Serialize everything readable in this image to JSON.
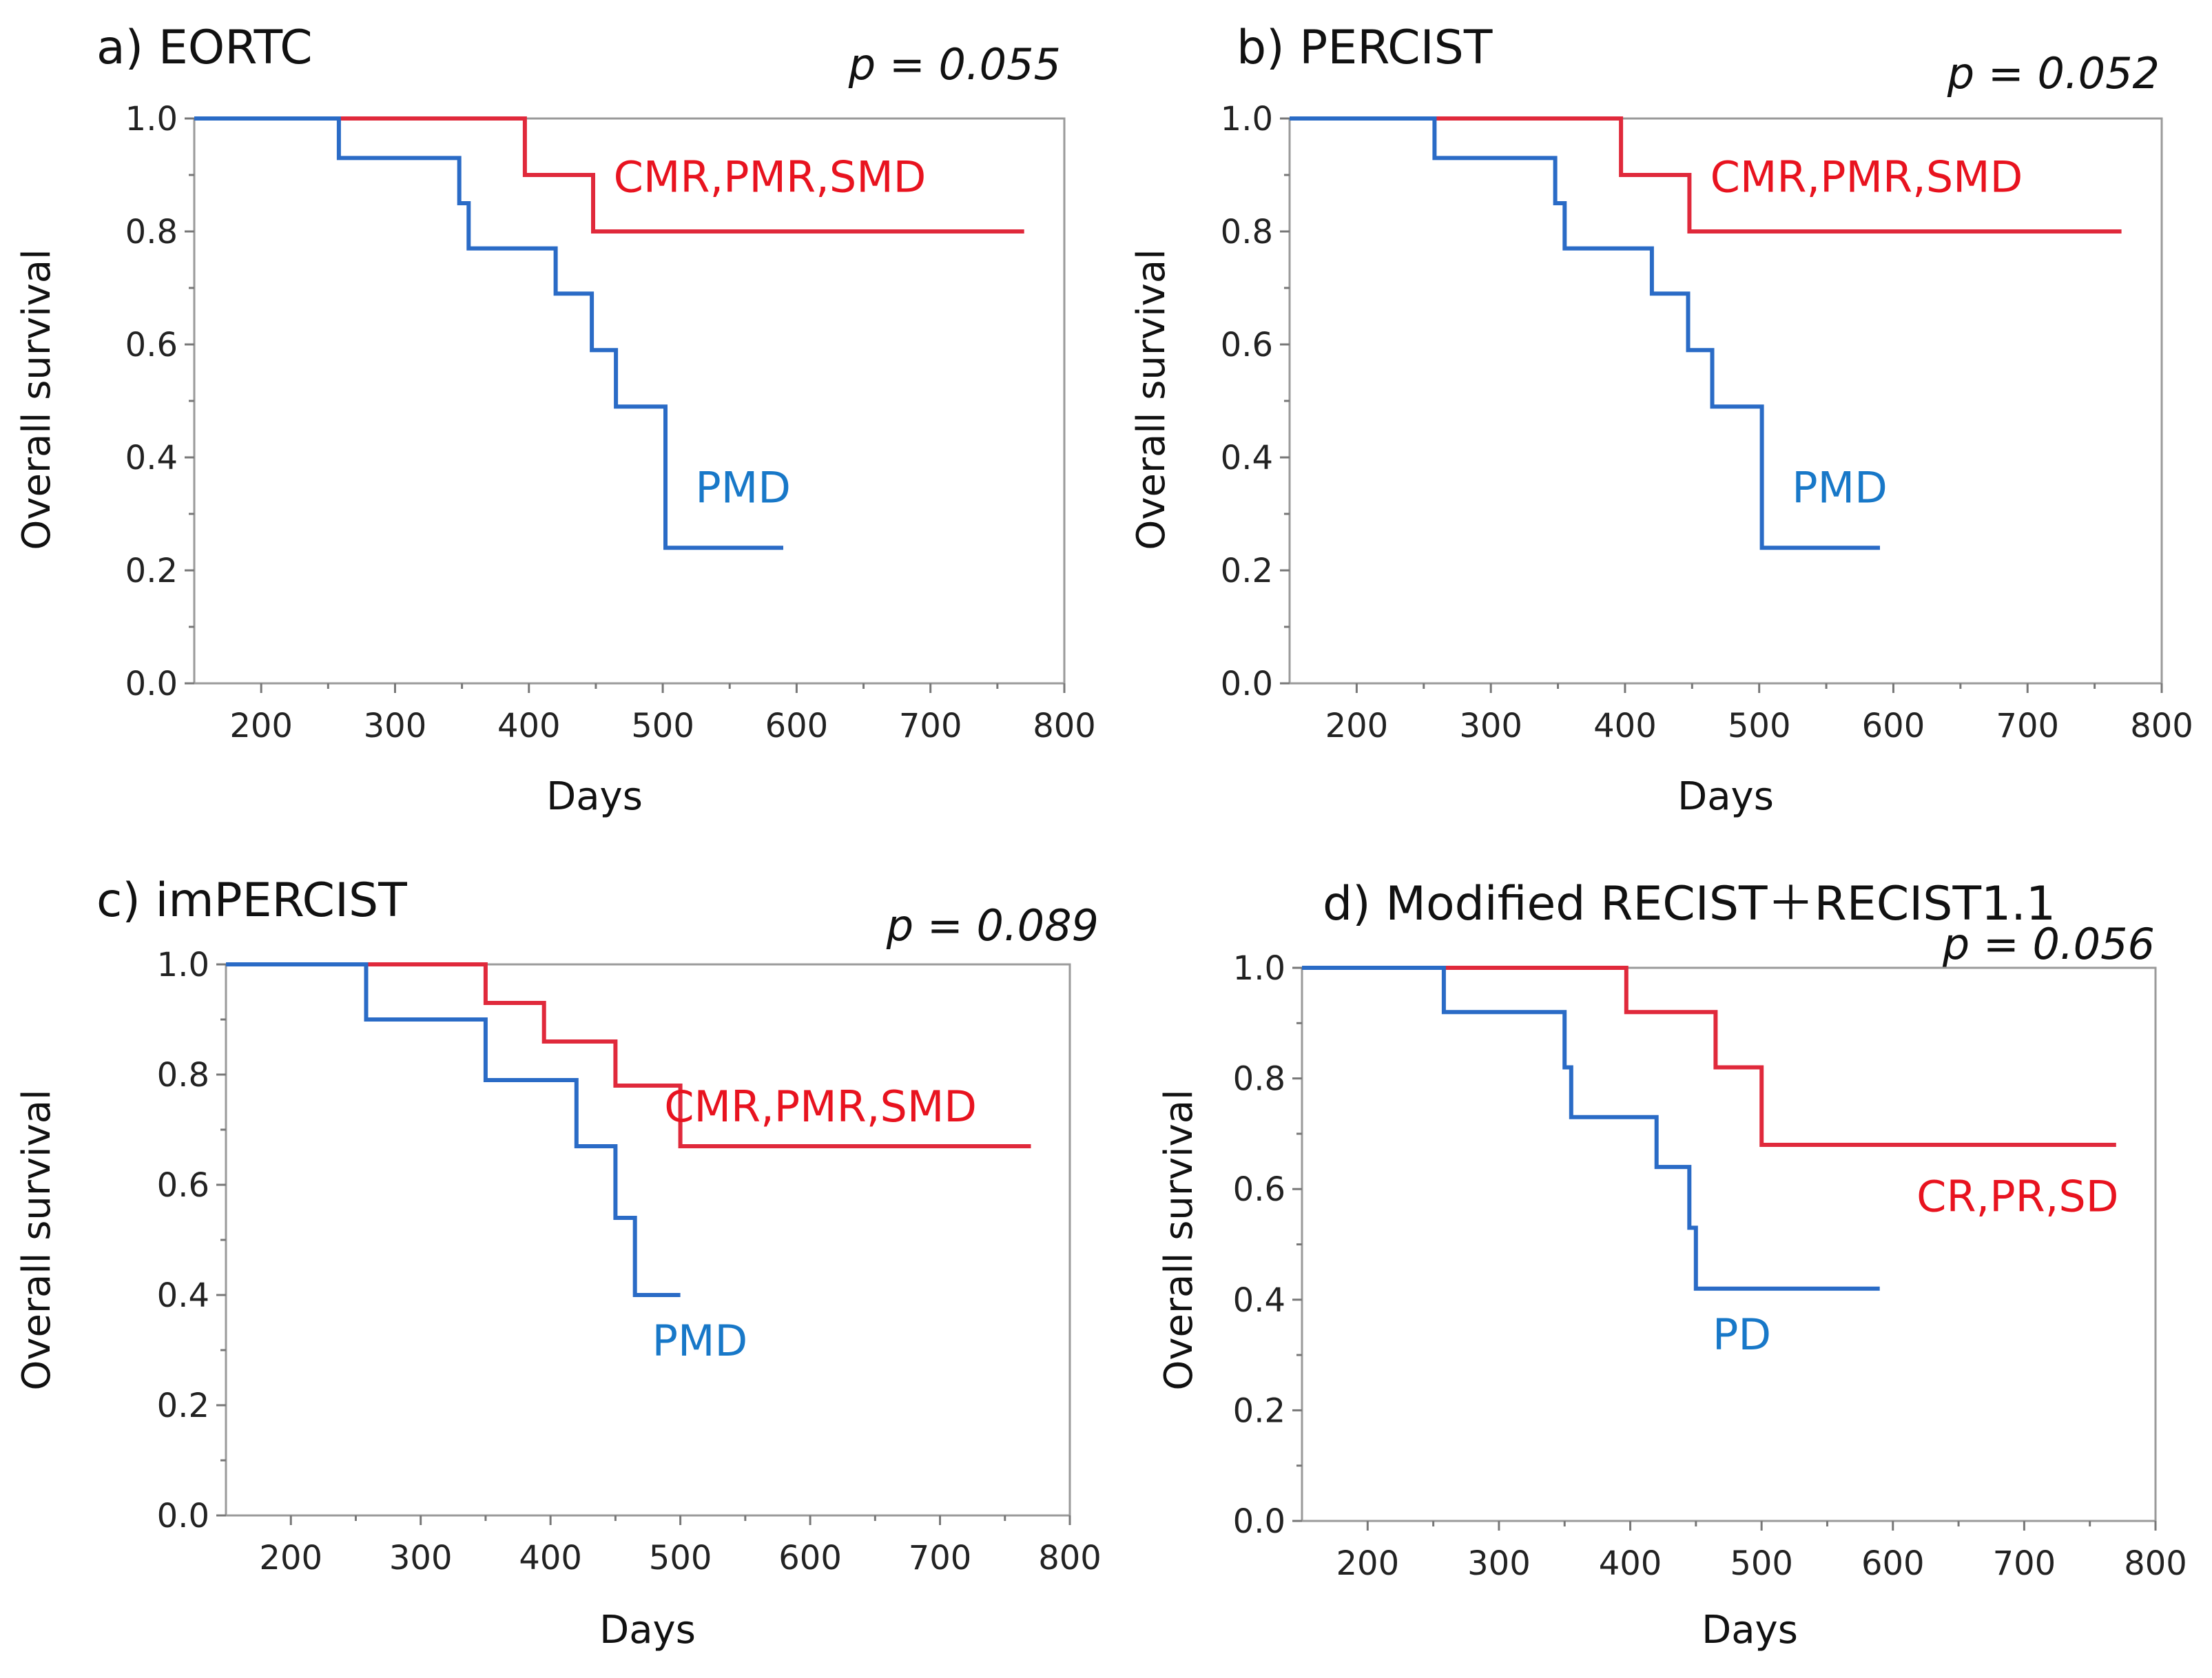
{
  "colors": {
    "blue": "#2a6bc6",
    "red": "#e0293b",
    "blue_label": "#1878c8",
    "red_label": "#e8131f"
  },
  "chart_data": [
    {
      "type": "line",
      "panel": "a",
      "title": "a) EORTC",
      "p_value": "p = 0.055",
      "xlabel": "Days",
      "ylabel": "Overall survival",
      "xlim": [
        150,
        800
      ],
      "ylim": [
        0,
        1
      ],
      "x_ticks": [
        "200",
        "300",
        "400",
        "500",
        "600",
        "700",
        "800"
      ],
      "y_ticks": [
        "0.0",
        "0.2",
        "0.4",
        "0.6",
        "0.8",
        "1.0"
      ],
      "series": [
        {
          "name": "CMR,PMR,SMD",
          "color": "red",
          "label_pos": [
            580,
            0.87
          ],
          "x": [
            150,
            397,
            448,
            770
          ],
          "y": [
            1.0,
            0.9,
            0.8,
            0.8
          ]
        },
        {
          "name": "PMD",
          "color": "blue",
          "label_pos": [
            560,
            0.32
          ],
          "x": [
            150,
            258,
            348,
            355,
            420,
            447,
            465,
            502,
            590
          ],
          "y": [
            1.0,
            0.93,
            0.85,
            0.77,
            0.69,
            0.59,
            0.49,
            0.24,
            0.24
          ]
        }
      ]
    },
    {
      "type": "line",
      "panel": "b",
      "title": "b) PERCIST",
      "p_value": "p = 0.052",
      "xlabel": "Days",
      "ylabel": "Overall survival",
      "xlim": [
        150,
        800
      ],
      "ylim": [
        0,
        1
      ],
      "x_ticks": [
        "200",
        "300",
        "400",
        "500",
        "600",
        "700",
        "800"
      ],
      "y_ticks": [
        "0.0",
        "0.2",
        "0.4",
        "0.6",
        "0.8",
        "1.0"
      ],
      "series": [
        {
          "name": "CMR,PMR,SMD",
          "color": "red",
          "label_pos": [
            580,
            0.87
          ],
          "x": [
            150,
            397,
            448,
            770
          ],
          "y": [
            1.0,
            0.9,
            0.8,
            0.8
          ]
        },
        {
          "name": "PMD",
          "color": "blue",
          "label_pos": [
            560,
            0.32
          ],
          "x": [
            150,
            258,
            348,
            355,
            420,
            447,
            465,
            502,
            590
          ],
          "y": [
            1.0,
            0.93,
            0.85,
            0.77,
            0.69,
            0.59,
            0.49,
            0.24,
            0.24
          ]
        }
      ]
    },
    {
      "type": "line",
      "panel": "c",
      "title": "c) imPERCIST",
      "p_value": "p = 0.089",
      "xlabel": "Days",
      "ylabel": "Overall survival",
      "xlim": [
        150,
        800
      ],
      "ylim": [
        0,
        1
      ],
      "x_ticks": [
        "200",
        "300",
        "400",
        "500",
        "600",
        "700",
        "800"
      ],
      "y_ticks": [
        "0.0",
        "0.2",
        "0.4",
        "0.6",
        "0.8",
        "1.0"
      ],
      "series": [
        {
          "name": "CMR,PMR,SMD",
          "color": "red",
          "label_pos": [
            608,
            0.715
          ],
          "x": [
            150,
            350,
            395,
            450,
            500,
            770
          ],
          "y": [
            1.0,
            0.93,
            0.86,
            0.78,
            0.67,
            0.67
          ]
        },
        {
          "name": "PMD",
          "color": "blue",
          "label_pos": [
            515,
            0.29
          ],
          "x": [
            150,
            258,
            350,
            420,
            450,
            465,
            500
          ],
          "y": [
            1.0,
            0.9,
            0.79,
            0.67,
            0.54,
            0.4,
            0.4
          ]
        }
      ]
    },
    {
      "type": "line",
      "panel": "d",
      "title": "d) Modified RECIST＋RECIST1.1",
      "p_value": "p = 0.056",
      "xlabel": "Days",
      "ylabel": "Overall survival",
      "xlim": [
        150,
        800
      ],
      "ylim": [
        0,
        1
      ],
      "x_ticks": [
        "200",
        "300",
        "400",
        "500",
        "600",
        "700",
        "800"
      ],
      "y_ticks": [
        "0.0",
        "0.2",
        "0.4",
        "0.6",
        "0.8",
        "1.0"
      ],
      "series": [
        {
          "name": "CR,PR,SD",
          "color": "red",
          "label_pos": [
            695,
            0.56
          ],
          "x": [
            150,
            397,
            465,
            500,
            770
          ],
          "y": [
            1.0,
            0.92,
            0.82,
            0.68,
            0.68
          ]
        },
        {
          "name": "PD",
          "color": "blue",
          "label_pos": [
            485,
            0.31
          ],
          "x": [
            150,
            258,
            350,
            355,
            420,
            445,
            450,
            590
          ],
          "y": [
            1.0,
            0.92,
            0.82,
            0.73,
            0.64,
            0.53,
            0.42,
            0.42
          ]
        }
      ]
    }
  ]
}
